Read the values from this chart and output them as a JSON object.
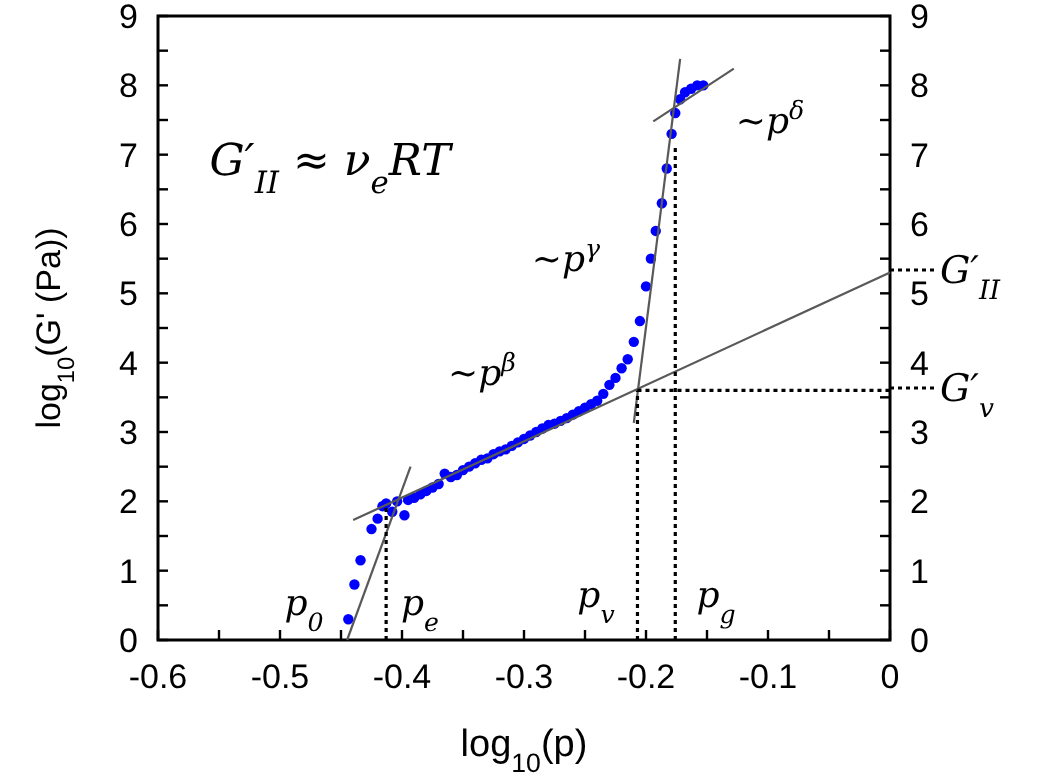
{
  "chart_data": {
    "type": "scatter",
    "xlabel": "log$_{10}$(p)",
    "ylabel": "log$_{10}$(G' (Pa))",
    "xlim": [
      -0.6,
      0
    ],
    "ylim": [
      0,
      9
    ],
    "y2lim": [
      0,
      9
    ],
    "xticks": [
      -0.6,
      {
        "value": -0.55,
        "label": null
      },
      -0.5,
      {
        "value": -0.45,
        "label": null
      },
      -0.4,
      {
        "value": -0.35,
        "label": null
      },
      -0.3,
      {
        "value": -0.25,
        "label": null
      },
      -0.2,
      {
        "value": -0.15,
        "label": null
      },
      -0.1,
      {
        "value": -0.05,
        "label": null
      },
      0
    ],
    "yticks": [
      0,
      {
        "value": 0.5,
        "label": null
      },
      1,
      {
        "value": 1.5,
        "label": null
      },
      2,
      {
        "value": 2.5,
        "label": null
      },
      3,
      {
        "value": 3.5,
        "label": null
      },
      4,
      {
        "value": 4.5,
        "label": null
      },
      5,
      {
        "value": 5.5,
        "label": null
      },
      6,
      {
        "value": 6.5,
        "label": null
      },
      7,
      {
        "value": 7.5,
        "label": null
      },
      8,
      {
        "value": 8.5,
        "label": null
      },
      9
    ],
    "y2ticks": [
      0,
      {
        "value": 0.5,
        "label": null
      },
      1,
      {
        "value": 1.5,
        "label": null
      },
      2,
      {
        "value": 2.5,
        "label": null
      },
      3,
      {
        "value": 3.5,
        "label": null
      },
      4,
      {
        "value": 4.5,
        "label": null
      },
      5,
      {
        "value": 5.5,
        "label": null
      },
      6,
      {
        "value": 6.5,
        "label": null
      },
      7,
      {
        "value": 7.5,
        "label": null
      },
      8,
      {
        "value": 8.5,
        "label": null
      },
      9
    ],
    "grid": false,
    "series": [
      {
        "color": "#0000ff",
        "marker": "circle",
        "x": [
          -0.444,
          -0.439,
          -0.434,
          -0.425,
          -0.42,
          -0.416,
          -0.413,
          -0.408,
          -0.404,
          -0.398,
          -0.395,
          -0.39,
          -0.385,
          -0.38,
          -0.375,
          -0.37,
          -0.365,
          -0.36,
          -0.355,
          -0.35,
          -0.345,
          -0.34,
          -0.335,
          -0.33,
          -0.325,
          -0.32,
          -0.315,
          -0.31,
          -0.305,
          -0.3,
          -0.295,
          -0.29,
          -0.285,
          -0.28,
          -0.275,
          -0.27,
          -0.265,
          -0.26,
          -0.255,
          -0.25,
          -0.245,
          -0.24,
          -0.235,
          -0.23,
          -0.225,
          -0.22,
          -0.215,
          -0.21,
          -0.205,
          -0.2,
          -0.196,
          -0.192,
          -0.187,
          -0.183,
          -0.179,
          -0.176,
          -0.172,
          -0.168,
          -0.163,
          -0.158,
          -0.153
        ],
        "values": [
          0.3,
          0.8,
          1.15,
          1.6,
          1.75,
          1.93,
          1.97,
          1.85,
          2.0,
          1.8,
          2.02,
          2.05,
          2.1,
          2.15,
          2.2,
          2.25,
          2.4,
          2.35,
          2.38,
          2.45,
          2.5,
          2.55,
          2.6,
          2.62,
          2.68,
          2.72,
          2.75,
          2.8,
          2.85,
          2.9,
          2.95,
          3.0,
          3.05,
          3.1,
          3.12,
          3.16,
          3.2,
          3.25,
          3.3,
          3.35,
          3.4,
          3.45,
          3.55,
          3.68,
          3.78,
          3.92,
          4.05,
          4.3,
          4.6,
          5.1,
          5.5,
          5.9,
          6.3,
          6.8,
          7.3,
          7.6,
          7.8,
          7.9,
          7.95,
          8.0,
          8.0
        ]
      },
      {
        "type": "line",
        "color": "#595959",
        "marker": "none",
        "line_style": "solid",
        "x": [
          -0.445,
          -0.393
        ],
        "values": [
          0,
          2.5
        ]
      },
      {
        "type": "line",
        "color": "#595959",
        "marker": "none",
        "line_style": "solid",
        "x": [
          -0.44,
          0
        ],
        "values": [
          1.73,
          5.3
        ]
      },
      {
        "type": "line",
        "color": "#595959",
        "marker": "none",
        "line_style": "solid",
        "x": [
          -0.21,
          -0.172
        ],
        "values": [
          3.13,
          8.38
        ]
      },
      {
        "type": "line",
        "color": "#595959",
        "marker": "none",
        "line_style": "solid",
        "x": [
          -0.194,
          -0.128
        ],
        "values": [
          7.48,
          8.24
        ]
      },
      {
        "type": "line",
        "color": "#000000",
        "marker": "none",
        "line_style": "dotted",
        "x": [
          -0.413,
          -0.413
        ],
        "values": [
          0,
          1.95
        ]
      },
      {
        "type": "line",
        "color": "#000000",
        "marker": "none",
        "line_style": "dotted",
        "x": [
          -0.207,
          -0.207
        ],
        "values": [
          0,
          3.6
        ]
      },
      {
        "type": "line",
        "color": "#000000",
        "marker": "none",
        "line_style": "dotted",
        "x": [
          -0.176,
          -0.176
        ],
        "values": [
          0,
          7.1
        ]
      },
      {
        "type": "line",
        "color": "#000000",
        "marker": "none",
        "line_style": "dotted",
        "x": [
          -0.207,
          0
        ],
        "values": [
          3.6,
          3.6
        ]
      }
    ],
    "annotations": [
      "G′$_{II}$ ≈ ν$_{e}$RT",
      "~p$^{β}$",
      "~p$^{γ}$",
      "~p$^{δ}$",
      "p$_{0}$",
      "p$_{e}$",
      "p$_{v}$",
      "p$_{g}$",
      "G′$_{II}$",
      "G′$_{v}$"
    ]
  }
}
